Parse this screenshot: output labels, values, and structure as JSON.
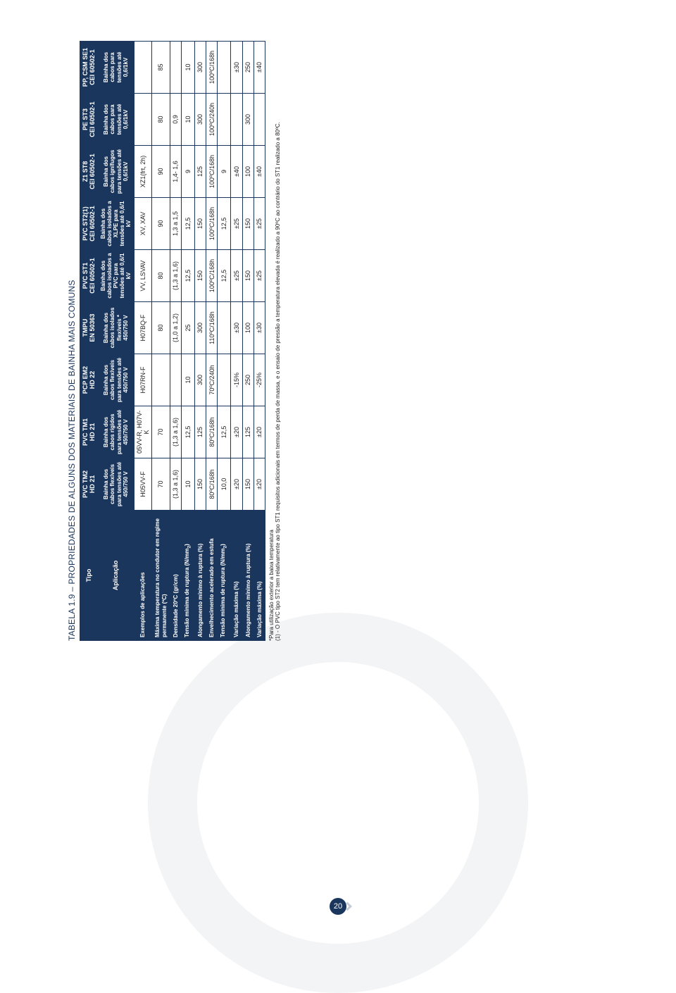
{
  "title": "TABELA 1.9 – PROPRIEDADES DE ALGUNS DOS MATERIAIS DE BAINHA MAIS COMUNS",
  "header_row1_label": "Tipo",
  "header_row2_label": "Aplicação",
  "columns": [
    {
      "tipo": "PVC TM2",
      "norm": "HD 21",
      "app": "Bainha dos cabos flexíveis para tensões até 450/750 V"
    },
    {
      "tipo": "PVC TM1",
      "norm": "HD 21",
      "app": "Bainha dos cabos rígidos para tensões até 450/750 V"
    },
    {
      "tipo": "PCP EM2",
      "norm": "HD 22",
      "app": "Bainha dos cabos flexíveis para tensões até 450/750 V"
    },
    {
      "tipo": "TMPU",
      "norm": "EN 50363",
      "app": "Bainha dos cabos isolados flexíveis * 450/750 V"
    },
    {
      "tipo": "PVC ST1",
      "norm": "CEI 60502-1",
      "app": "Bainha dos cabos isolados a PVC para tensões até 0,6/1 kV"
    },
    {
      "tipo": "PVC ST2(1)",
      "norm": "CEI 60502-1",
      "app": "Bainha dos cabos isolados a XLPE para tensões até 0,6/1 kV"
    },
    {
      "tipo": "Z1 ST8",
      "norm": "CEI 60502-1",
      "app": "Bainha dos cabos ignífugos para tensões até 0,6/1kV"
    },
    {
      "tipo": "PE ST3",
      "norm": "CEI 60502-1",
      "app": "Bainha dos cabos para tensões até 0,6/1kV"
    },
    {
      "tipo": "PP, CSM SE1",
      "norm": "CEI 60502-1",
      "app": "Bainha dos cabos para tensões até 0,6/1kV"
    }
  ],
  "rows": [
    {
      "label": "Exemplos de aplicações",
      "vals": [
        "H05VV-F",
        "05VV-R, H07V-K",
        "H07RN-F",
        "H07BQ-F",
        "VV, LSVAV",
        "XV, XAV",
        "XZ1(frt, 2h)",
        "",
        ""
      ]
    },
    {
      "label": "Máxima temperatura no condutor em regime permanente (ºC)",
      "vals": [
        "70",
        "70",
        "",
        "80",
        "80",
        "90",
        "90",
        "80",
        "85"
      ]
    },
    {
      "label": "Densidade 20ºC (gr/cm)",
      "vals": [
        "(1,3 a 1,6)",
        "(1,3 a 1,6)",
        "",
        "(1,0 a 1,2)",
        "(1,3 a 1,6)",
        "1,3 a 1,5",
        "1,4- 1,6",
        "0,9",
        ""
      ]
    },
    {
      "label": "Tensão mínima de ruptura (N/mm 2)",
      "sub": true,
      "vals": [
        "10",
        "12,5",
        "10",
        "25",
        "12,5",
        "12,5",
        "9",
        "10",
        "10"
      ]
    },
    {
      "label": "Alongamento mínimo à ruptura (%)",
      "vals": [
        "150",
        "125",
        "300",
        "300",
        "150",
        "150",
        "125",
        "300",
        "300"
      ]
    },
    {
      "label": "Envelhecimento acelerado em estufa",
      "vals": [
        "80ºC/168h",
        "80ºC/168h",
        "70ºC/240h",
        "110ºC/168h",
        "100ºC/168h",
        "100ºC/168h",
        "100ºC/168h",
        "100ºC/240h",
        "100ºC/168h"
      ]
    },
    {
      "label": "Tensão mínima de ruptura (N/mm 2)",
      "sub": true,
      "vals": [
        "10,0",
        "12,5",
        "",
        "",
        "12,5",
        "12,5",
        "9",
        "",
        ""
      ]
    },
    {
      "label": "Variação máxima (%)",
      "vals": [
        "±20",
        "±20",
        "-15%",
        "±30",
        "±25",
        "±25",
        "±40",
        "",
        "±30"
      ]
    },
    {
      "label": "Alongamento mínimo à ruptura (%)",
      "vals": [
        "150",
        "125",
        "250",
        "100",
        "150",
        "150",
        "100",
        "300",
        "250"
      ]
    },
    {
      "label": "Variação máxima (%)",
      "vals": [
        "±20",
        "±20",
        "-25%",
        "±30",
        "±25",
        "±25",
        "±40",
        "",
        "±40"
      ]
    }
  ],
  "footnotes": [
    "*Para utilização exterior a baixa temperatura",
    "(1) - O PVC tipo ST2 tem relativamente ao tipo ST1 requisitos adicionais em termos de perda de massa, e o ensaio de pressão a temperatura elevada é realizado a 90ºC ao contrário do ST1 realizado a 80ºC."
  ],
  "page_number": "20",
  "colors": {
    "header_bg": "#1b365d",
    "header_fg": "#ffffff",
    "border": "#1b365d",
    "text": "#222222"
  }
}
